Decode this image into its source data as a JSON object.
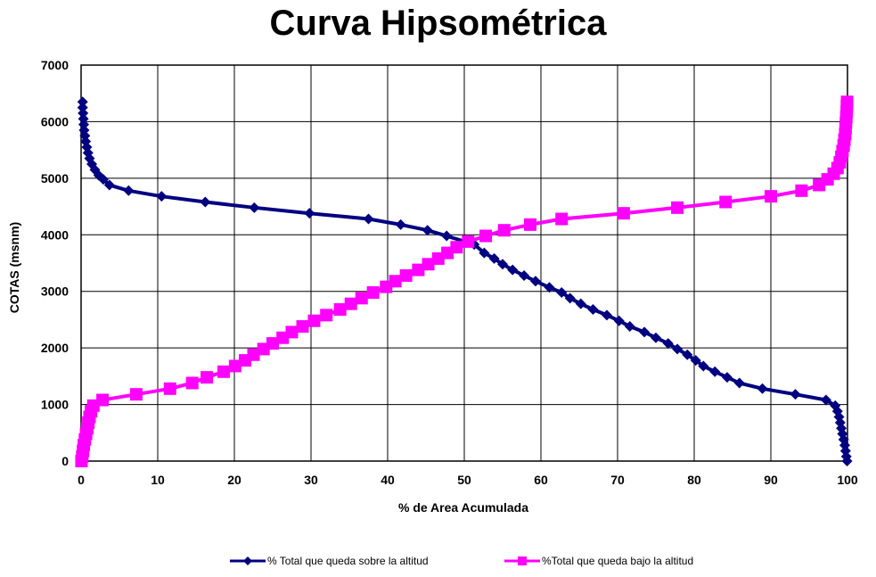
{
  "chart_data": {
    "type": "line",
    "title": "Curva Hipsométrica",
    "xlabel": "% de Area Acumulada",
    "ylabel": "COTAS (msnm)",
    "xlim": [
      0,
      100
    ],
    "ylim": [
      0,
      7000
    ],
    "x_ticks": [
      "0",
      "10",
      "20",
      "30",
      "40",
      "50",
      "60",
      "70",
      "80",
      "90",
      "100"
    ],
    "y_ticks": [
      "0",
      "1000",
      "2000",
      "3000",
      "4000",
      "5000",
      "6000",
      "7000"
    ],
    "grid": true,
    "legend_position": "bottom",
    "series": [
      {
        "name": "% Total que queda sobre la altitud",
        "color": "#000080",
        "marker": "diamond",
        "points": [
          [
            0.2,
            6350
          ],
          [
            0.2,
            6250
          ],
          [
            0.25,
            6150
          ],
          [
            0.3,
            6050
          ],
          [
            0.35,
            5950
          ],
          [
            0.4,
            5850
          ],
          [
            0.5,
            5750
          ],
          [
            0.6,
            5650
          ],
          [
            0.75,
            5550
          ],
          [
            0.9,
            5450
          ],
          [
            1.1,
            5350
          ],
          [
            1.4,
            5250
          ],
          [
            1.8,
            5150
          ],
          [
            2.3,
            5050
          ],
          [
            2.9,
            4980
          ],
          [
            3.7,
            4880
          ],
          [
            6.2,
            4780
          ],
          [
            10.5,
            4680
          ],
          [
            16.2,
            4580
          ],
          [
            22.6,
            4480
          ],
          [
            29.8,
            4380
          ],
          [
            37.5,
            4280
          ],
          [
            41.7,
            4180
          ],
          [
            45.2,
            4080
          ],
          [
            47.7,
            3980
          ],
          [
            51.3,
            3830
          ],
          [
            52.6,
            3680
          ],
          [
            53.9,
            3580
          ],
          [
            55.0,
            3480
          ],
          [
            56.3,
            3380
          ],
          [
            57.8,
            3280
          ],
          [
            59.3,
            3180
          ],
          [
            61.1,
            3070
          ],
          [
            62.7,
            2980
          ],
          [
            63.8,
            2880
          ],
          [
            65.2,
            2780
          ],
          [
            66.8,
            2680
          ],
          [
            68.6,
            2580
          ],
          [
            70.2,
            2480
          ],
          [
            71.6,
            2380
          ],
          [
            73.5,
            2280
          ],
          [
            75.0,
            2180
          ],
          [
            76.6,
            2080
          ],
          [
            77.8,
            1980
          ],
          [
            79.1,
            1880
          ],
          [
            80.2,
            1780
          ],
          [
            81.2,
            1680
          ],
          [
            82.7,
            1580
          ],
          [
            84.3,
            1480
          ],
          [
            85.9,
            1380
          ],
          [
            88.9,
            1280
          ],
          [
            93.2,
            1180
          ],
          [
            97.2,
            1080
          ],
          [
            98.4,
            980
          ],
          [
            98.7,
            880
          ],
          [
            98.9,
            780
          ],
          [
            99.05,
            680
          ],
          [
            99.2,
            580
          ],
          [
            99.35,
            480
          ],
          [
            99.5,
            380
          ],
          [
            99.65,
            280
          ],
          [
            99.75,
            180
          ],
          [
            99.85,
            80
          ],
          [
            99.95,
            0
          ]
        ]
      },
      {
        "name": "%Total que queda bajo la altitud",
        "color": "#FF00FF",
        "marker": "square",
        "points": [
          [
            0.05,
            0
          ],
          [
            0.15,
            80
          ],
          [
            0.25,
            180
          ],
          [
            0.35,
            280
          ],
          [
            0.5,
            380
          ],
          [
            0.65,
            480
          ],
          [
            0.8,
            580
          ],
          [
            0.95,
            680
          ],
          [
            1.1,
            780
          ],
          [
            1.3,
            880
          ],
          [
            1.6,
            980
          ],
          [
            2.8,
            1080
          ],
          [
            7.2,
            1180
          ],
          [
            11.6,
            1280
          ],
          [
            14.5,
            1380
          ],
          [
            16.4,
            1480
          ],
          [
            18.6,
            1580
          ],
          [
            20.1,
            1680
          ],
          [
            21.4,
            1780
          ],
          [
            22.5,
            1880
          ],
          [
            23.8,
            1980
          ],
          [
            25.0,
            2080
          ],
          [
            26.3,
            2180
          ],
          [
            27.5,
            2280
          ],
          [
            28.9,
            2380
          ],
          [
            30.4,
            2480
          ],
          [
            32.0,
            2580
          ],
          [
            33.8,
            2680
          ],
          [
            35.2,
            2780
          ],
          [
            36.6,
            2880
          ],
          [
            38.1,
            2980
          ],
          [
            39.8,
            3080
          ],
          [
            41.0,
            3180
          ],
          [
            42.4,
            3280
          ],
          [
            44.0,
            3380
          ],
          [
            45.3,
            3480
          ],
          [
            46.6,
            3580
          ],
          [
            47.8,
            3680
          ],
          [
            49.0,
            3780
          ],
          [
            50.5,
            3880
          ],
          [
            52.8,
            3980
          ],
          [
            55.2,
            4080
          ],
          [
            58.6,
            4180
          ],
          [
            62.7,
            4280
          ],
          [
            70.8,
            4380
          ],
          [
            77.8,
            4480
          ],
          [
            84.1,
            4580
          ],
          [
            90.0,
            4680
          ],
          [
            94.0,
            4780
          ],
          [
            96.3,
            4880
          ],
          [
            97.4,
            4980
          ],
          [
            98.2,
            5080
          ],
          [
            98.7,
            5180
          ],
          [
            99.0,
            5280
          ],
          [
            99.2,
            5380
          ],
          [
            99.35,
            5480
          ],
          [
            99.5,
            5580
          ],
          [
            99.6,
            5680
          ],
          [
            99.7,
            5780
          ],
          [
            99.75,
            5880
          ],
          [
            99.8,
            5980
          ],
          [
            99.85,
            6080
          ],
          [
            99.9,
            6180
          ],
          [
            99.92,
            6280
          ],
          [
            99.95,
            6350
          ]
        ]
      }
    ]
  }
}
